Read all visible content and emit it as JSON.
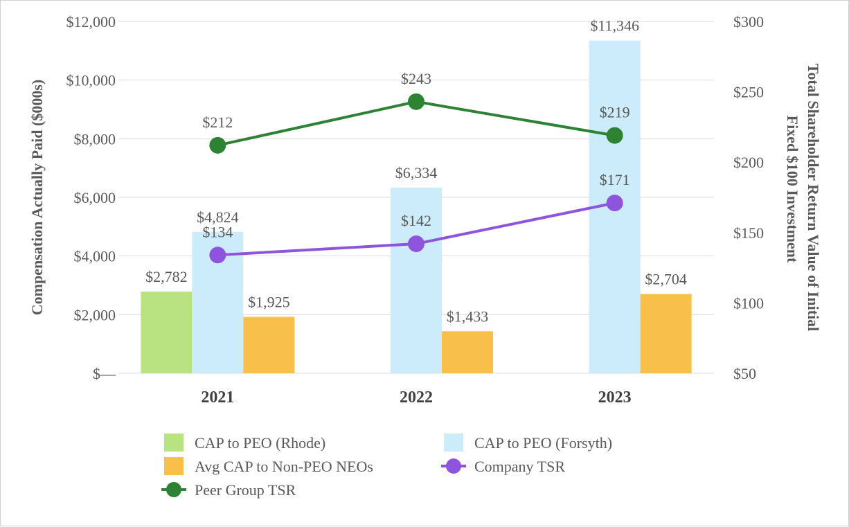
{
  "chart_data": {
    "type": "bar",
    "categories": [
      "2021",
      "2022",
      "2023"
    ],
    "series": [
      {
        "name": "CAP to PEO (Rhode)",
        "kind": "bar",
        "axis": "left",
        "color": "#b9e381",
        "values": [
          2782,
          null,
          null
        ],
        "labels": [
          "$2,782",
          null,
          null
        ]
      },
      {
        "name": "CAP to PEO (Forsyth)",
        "kind": "bar",
        "axis": "left",
        "color": "#cdecfb",
        "values": [
          4824,
          6334,
          11346
        ],
        "labels": [
          "$4,824",
          "$6,334",
          "$11,346"
        ]
      },
      {
        "name": "Avg CAP to Non-PEO NEOs",
        "kind": "bar",
        "axis": "left",
        "color": "#f9bf4b",
        "values": [
          1925,
          1433,
          2704
        ],
        "labels": [
          "$1,925",
          "$1,433",
          "$2,704"
        ]
      },
      {
        "name": "Company TSR",
        "kind": "line",
        "axis": "right",
        "color": "#8f54de",
        "values": [
          134,
          142,
          171
        ],
        "labels": [
          "$134",
          "$142",
          "$171"
        ]
      },
      {
        "name": "Peer Group TSR",
        "kind": "line",
        "axis": "right",
        "color": "#2e8233",
        "values": [
          212,
          243,
          219
        ],
        "labels": [
          "$212",
          "$243",
          "$219"
        ]
      }
    ],
    "left_axis": {
      "title": "Compensation Actually Paid ($000s)",
      "ylim": [
        0,
        12000
      ],
      "ticks": [
        0,
        2000,
        4000,
        6000,
        8000,
        10000,
        12000
      ],
      "tick_labels": [
        "$—",
        "$2,000",
        "$4,000",
        "$6,000",
        "$8,000",
        "$10,000",
        "$12,000"
      ]
    },
    "right_axis": {
      "title_lines": [
        "Total Shareholder Return Value of Initial",
        "Fixed $100 Investment"
      ],
      "ylim": [
        50,
        300
      ],
      "ticks": [
        50,
        100,
        150,
        200,
        250,
        300
      ],
      "tick_labels": [
        "$50",
        "$100",
        "$150",
        "$200",
        "$250",
        "$300"
      ]
    },
    "legend_position": "bottom",
    "grid": true
  }
}
